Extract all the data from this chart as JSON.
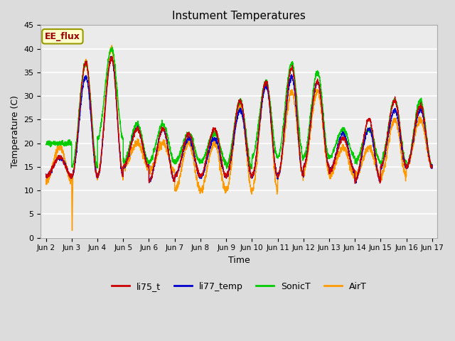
{
  "title": "Instument Temperatures",
  "xlabel": "Time",
  "ylabel": "Temperature (C)",
  "ylim": [
    0,
    45
  ],
  "background_color": "#dcdcdc",
  "plot_bg_color": "#ebebeb",
  "grid_color": "white",
  "tick_labels": [
    "Jun 2",
    "Jun 3",
    "Jun 4",
    "Jun 5",
    "Jun 6",
    "Jun 7",
    "Jun 8",
    "Jun 9",
    "Jun 10",
    "Jun 11",
    "Jun 12",
    "Jun 13",
    "Jun 14",
    "Jun 15",
    "Jun 16",
    "Jun 17"
  ],
  "annotation_text": "EE_flux",
  "annotation_bg": "#ffffcc",
  "annotation_border": "#999900",
  "series_colors": {
    "li75_t": "#cc0000",
    "li77_temp": "#0000cc",
    "SonicT": "#00cc00",
    "AirT": "#ff9900"
  },
  "day_peaks": {
    "li75_t": [
      17,
      37,
      38,
      23,
      23,
      22,
      23,
      29,
      33,
      36,
      33,
      21,
      25,
      29,
      28,
      17
    ],
    "li77_temp": [
      17,
      34,
      38,
      23,
      23,
      21,
      21,
      27,
      32,
      34,
      33,
      22,
      23,
      27,
      27,
      17
    ],
    "SonicT": [
      20,
      37,
      40,
      24,
      24,
      22,
      22,
      29,
      33,
      37,
      35,
      23,
      23,
      29,
      29,
      19
    ],
    "AirT": [
      19,
      37,
      40,
      20,
      20,
      20,
      20,
      28,
      33,
      31,
      31,
      19,
      19,
      25,
      25,
      15
    ]
  },
  "day_mins": {
    "li75_t": [
      13,
      13,
      13,
      15,
      12,
      13,
      13,
      13,
      13,
      13,
      15,
      14,
      12,
      15,
      15,
      15
    ],
    "li77_temp": [
      13,
      13,
      13,
      15,
      12,
      13,
      13,
      13,
      13,
      13,
      15,
      14,
      12,
      15,
      15,
      15
    ],
    "SonicT": [
      20,
      15,
      21,
      16,
      16,
      16,
      16,
      15,
      17,
      17,
      17,
      17,
      16,
      16,
      15,
      15
    ],
    "AirT": [
      12,
      13,
      13,
      15,
      14,
      10,
      10,
      10,
      10,
      13,
      14,
      13,
      13,
      13,
      15,
      14
    ]
  }
}
